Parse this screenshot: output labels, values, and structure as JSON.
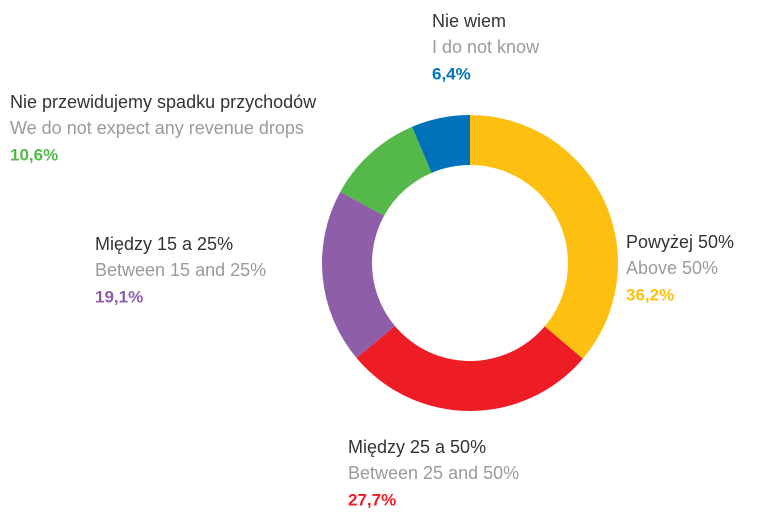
{
  "chart_data": {
    "type": "donut",
    "categories": [
      "Powyżej 50%",
      "Między 25 a 50%",
      "Między 15 a 25%",
      "Nie przewidujemy spadku przychodów",
      "Nie wiem"
    ],
    "translations": [
      "Above 50%",
      "Between 25 and 50%",
      "Between 15 and 25%",
      "We do not  expect any revenue drops",
      "I do not know"
    ],
    "values": [
      36.2,
      27.7,
      19.1,
      10.6,
      6.4
    ],
    "value_labels": [
      "36,2%",
      "27,7%",
      "19,1%",
      "10,6%",
      "6,4%"
    ],
    "colors": [
      "#fdc010",
      "#ee1c25",
      "#8e5ea8",
      "#54b948",
      "#0072bc"
    ]
  }
}
